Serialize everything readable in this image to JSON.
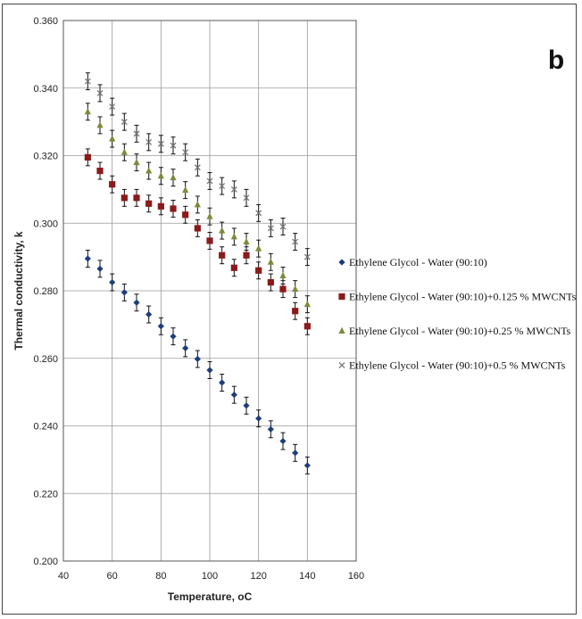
{
  "chart_data": {
    "type": "scatter",
    "panel_label": "b",
    "xlabel": "Temperature, oC",
    "ylabel": "Thermal conductivity, k",
    "xlim": [
      40,
      160
    ],
    "ylim": [
      0.2,
      0.36
    ],
    "x_ticks": [
      "40",
      "60",
      "80",
      "100",
      "120",
      "140",
      "160"
    ],
    "y_ticks": [
      "0.200",
      "0.220",
      "0.240",
      "0.260",
      "0.280",
      "0.300",
      "0.320",
      "0.340",
      "0.360"
    ],
    "grid": true,
    "legend_position": "right",
    "series": [
      {
        "name": "Ethylene Glycol - Water (90:10)",
        "marker": "diamond",
        "color": "#1f3d7a",
        "x": [
          50,
          55,
          60,
          65,
          70,
          75,
          80,
          85,
          90,
          95,
          100,
          105,
          110,
          115,
          120,
          125,
          130,
          135,
          140
        ],
        "y": [
          0.2895,
          0.2865,
          0.2825,
          0.2795,
          0.2765,
          0.273,
          0.2695,
          0.2665,
          0.263,
          0.2598,
          0.2565,
          0.2528,
          0.2492,
          0.246,
          0.2422,
          0.239,
          0.2355,
          0.232,
          0.2283
        ],
        "error": 0.0025
      },
      {
        "name": "Ethylene Glycol - Water (90:10)+0.125 % MWCNTs",
        "marker": "square",
        "color": "#8b1a1a",
        "x": [
          50,
          55,
          60,
          65,
          70,
          75,
          80,
          85,
          90,
          95,
          100,
          105,
          110,
          115,
          120,
          125,
          130,
          135,
          140
        ],
        "y": [
          0.3195,
          0.3155,
          0.3115,
          0.3075,
          0.3075,
          0.3058,
          0.305,
          0.3043,
          0.3025,
          0.2985,
          0.2948,
          0.2905,
          0.2868,
          0.2905,
          0.286,
          0.2825,
          0.2805,
          0.274,
          0.2695
        ],
        "error": 0.0025
      },
      {
        "name": "Ethylene Glycol - Water (90:10)+0.25 % MWCNTs",
        "marker": "triangle",
        "color": "#7a8c3c",
        "x": [
          50,
          55,
          60,
          65,
          70,
          75,
          80,
          85,
          90,
          95,
          100,
          105,
          110,
          115,
          120,
          125,
          130,
          135,
          140
        ],
        "y": [
          0.333,
          0.329,
          0.325,
          0.321,
          0.318,
          0.3155,
          0.314,
          0.3135,
          0.3098,
          0.3055,
          0.302,
          0.2978,
          0.296,
          0.2945,
          0.2925,
          0.2885,
          0.2845,
          0.2805,
          0.276
        ],
        "error": 0.0025
      },
      {
        "name": "Ethylene Glycol - Water (90:10)+0.5 % MWCNTs",
        "marker": "x",
        "color": "#777777",
        "x": [
          50,
          55,
          60,
          65,
          70,
          75,
          80,
          85,
          90,
          95,
          100,
          105,
          110,
          115,
          120,
          125,
          130,
          135,
          140
        ],
        "y": [
          0.342,
          0.3385,
          0.3345,
          0.33,
          0.3265,
          0.324,
          0.3235,
          0.323,
          0.321,
          0.3165,
          0.3125,
          0.311,
          0.31,
          0.3075,
          0.303,
          0.2985,
          0.299,
          0.2945,
          0.29
        ],
        "error": 0.0025
      }
    ]
  }
}
